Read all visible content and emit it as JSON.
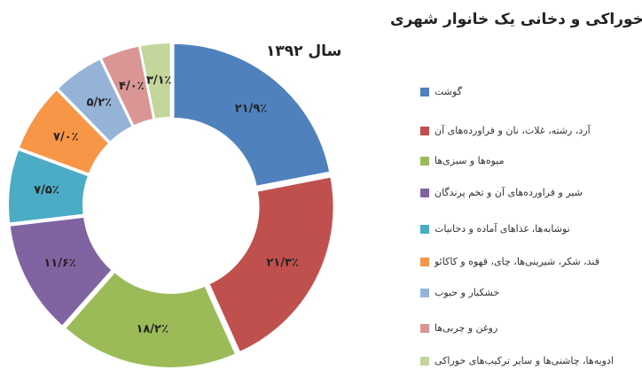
{
  "chart_data": {
    "type": "donut",
    "title": "ترکیب انواع هزینه‌های خوراکی و دخانی یک خانوار شهری",
    "subtitle": "سال ۱۳۹۲",
    "categories": [
      "گوشت",
      "آرد، رشته، غلات، نان و فراورده‌های آن",
      "میوه‌ها و سبزی‌ها",
      "شیر و فراورده‌های آن و تخم پرندگان",
      "نوشابه‌ها، غذاهای آماده و دخانیات",
      "قند، شکر، شیرینی‌ها، چای، قهوه و کاکائو",
      "خشکبار و حبوب",
      "روغن و چربی‌ها",
      "ادویه‌ها، چاشنی‌ها و سایر ترکیب‌های خوراکی"
    ],
    "values": [
      21.9,
      21.3,
      18.2,
      11.6,
      7.5,
      7.0,
      5.2,
      4.0,
      3.1
    ],
    "value_labels": [
      "۲۱/۹٪",
      "۲۱/۳٪",
      "۱۸/۲٪",
      "۱۱/۶٪",
      "۷/۵٪",
      "۷/۰٪",
      "۵/۲٪",
      "۴/۰٪",
      "۳/۱٪"
    ],
    "colors": [
      "#4f81bd",
      "#c0504d",
      "#9bbb59",
      "#8064a2",
      "#4bacc6",
      "#f79646",
      "#95b3d7",
      "#d99694",
      "#c3d69b"
    ],
    "legend": "right"
  }
}
